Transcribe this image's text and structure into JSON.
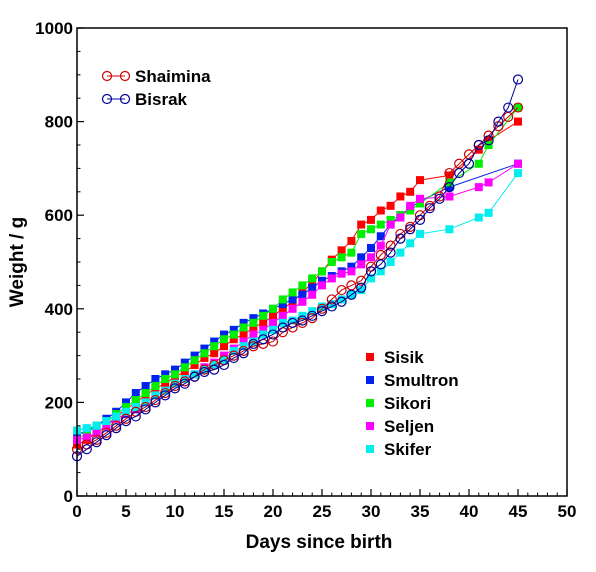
{
  "chart_data": {
    "type": "scatter",
    "xlabel": "Days since birth",
    "ylabel": "Weight / g",
    "xlim": [
      0,
      50
    ],
    "ylim": [
      0,
      1000
    ],
    "x_ticks": [
      0,
      5,
      10,
      15,
      20,
      25,
      30,
      35,
      40,
      45,
      50
    ],
    "y_ticks": [
      0,
      200,
      400,
      600,
      800,
      1000
    ],
    "grid": false,
    "legends": {
      "top-left": [
        "Shaimina",
        "Bisrak"
      ],
      "bottom-right": [
        "Sisik",
        "Smultron",
        "Sikori",
        "Seljen",
        "Skifer"
      ]
    },
    "series": [
      {
        "name": "Shaimina",
        "marker": "open-circle",
        "color": "#cc0000",
        "x": [
          0,
          1,
          2,
          3,
          4,
          5,
          6,
          7,
          8,
          9,
          10,
          11,
          12,
          13,
          14,
          15,
          16,
          17,
          18,
          19,
          20,
          21,
          22,
          23,
          24,
          25,
          26,
          27,
          28,
          29,
          30,
          31,
          32,
          33,
          34,
          35,
          36,
          37,
          38,
          39,
          40,
          41,
          42,
          43,
          44,
          45
        ],
        "y": [
          100,
          110,
          120,
          135,
          150,
          165,
          180,
          190,
          205,
          220,
          235,
          245,
          255,
          270,
          280,
          290,
          300,
          310,
          320,
          325,
          330,
          350,
          360,
          370,
          380,
          400,
          420,
          440,
          450,
          460,
          490,
          515,
          535,
          560,
          575,
          600,
          620,
          640,
          690,
          710,
          730,
          750,
          770,
          790,
          810,
          830
        ]
      },
      {
        "name": "Bisrak",
        "marker": "open-circle",
        "color": "#000099",
        "x": [
          0,
          1,
          2,
          3,
          4,
          5,
          6,
          7,
          8,
          9,
          10,
          11,
          12,
          13,
          14,
          15,
          16,
          17,
          18,
          19,
          20,
          21,
          22,
          23,
          24,
          25,
          26,
          27,
          28,
          29,
          30,
          31,
          32,
          33,
          34,
          35,
          36,
          37,
          38,
          39,
          40,
          41,
          42,
          43,
          44,
          45
        ],
        "y": [
          85,
          100,
          115,
          130,
          145,
          160,
          170,
          185,
          200,
          215,
          230,
          240,
          255,
          265,
          270,
          280,
          295,
          305,
          325,
          335,
          345,
          360,
          370,
          375,
          385,
          395,
          405,
          415,
          430,
          445,
          480,
          495,
          520,
          550,
          570,
          590,
          615,
          635,
          660,
          690,
          710,
          750,
          760,
          800,
          830,
          890
        ]
      },
      {
        "name": "Sisik",
        "marker": "filled-square",
        "color": "#ff0000",
        "x": [
          0,
          1,
          2,
          3,
          4,
          5,
          6,
          7,
          8,
          9,
          10,
          11,
          12,
          13,
          14,
          15,
          16,
          17,
          18,
          19,
          20,
          21,
          22,
          23,
          24,
          25,
          26,
          27,
          28,
          29,
          30,
          31,
          32,
          33,
          34,
          35,
          38,
          41,
          42,
          45
        ],
        "y": [
          110,
          120,
          135,
          150,
          170,
          185,
          200,
          215,
          230,
          240,
          255,
          265,
          280,
          295,
          305,
          320,
          335,
          345,
          360,
          370,
          385,
          400,
          415,
          435,
          455,
          480,
          505,
          525,
          545,
          580,
          590,
          610,
          620,
          640,
          650,
          675,
          685,
          740,
          760,
          800
        ]
      },
      {
        "name": "Smultron",
        "marker": "filled-square",
        "color": "#0022ee",
        "x": [
          0,
          1,
          2,
          3,
          4,
          5,
          6,
          7,
          8,
          9,
          10,
          11,
          12,
          13,
          14,
          15,
          16,
          17,
          18,
          19,
          20,
          21,
          22,
          23,
          24,
          25,
          26,
          27,
          28,
          29,
          30,
          31,
          32,
          33,
          34,
          35,
          38,
          45
        ],
        "y": [
          130,
          140,
          150,
          165,
          180,
          200,
          220,
          235,
          250,
          260,
          270,
          285,
          300,
          315,
          330,
          345,
          355,
          370,
          380,
          390,
          400,
          410,
          420,
          430,
          445,
          460,
          470,
          480,
          490,
          510,
          530,
          555,
          580,
          600,
          615,
          630,
          660,
          710
        ]
      },
      {
        "name": "Sikori",
        "marker": "filled-square",
        "color": "#00ee00",
        "x": [
          0,
          1,
          2,
          3,
          4,
          5,
          6,
          7,
          8,
          9,
          10,
          11,
          12,
          13,
          14,
          15,
          16,
          17,
          18,
          19,
          20,
          21,
          22,
          23,
          24,
          25,
          26,
          27,
          28,
          29,
          30,
          31,
          32,
          33,
          34,
          35,
          38,
          41,
          42,
          45
        ],
        "y": [
          120,
          135,
          150,
          160,
          175,
          190,
          205,
          220,
          235,
          250,
          260,
          275,
          290,
          305,
          320,
          335,
          345,
          360,
          370,
          385,
          400,
          420,
          435,
          450,
          465,
          480,
          500,
          510,
          520,
          560,
          570,
          580,
          590,
          600,
          610,
          625,
          670,
          710,
          750,
          830
        ]
      },
      {
        "name": "Seljen",
        "marker": "filled-square",
        "color": "#ff00ff",
        "x": [
          0,
          1,
          2,
          3,
          4,
          5,
          6,
          7,
          8,
          9,
          10,
          11,
          12,
          13,
          14,
          15,
          16,
          17,
          18,
          19,
          20,
          21,
          22,
          23,
          24,
          25,
          26,
          27,
          28,
          29,
          30,
          31,
          32,
          33,
          34,
          35,
          38,
          41,
          42,
          45
        ],
        "y": [
          120,
          125,
          135,
          150,
          165,
          175,
          185,
          200,
          215,
          225,
          240,
          250,
          260,
          275,
          285,
          300,
          315,
          330,
          345,
          355,
          370,
          385,
          400,
          415,
          430,
          450,
          465,
          475,
          480,
          495,
          510,
          535,
          580,
          595,
          620,
          635,
          640,
          660,
          670,
          710
        ]
      },
      {
        "name": "Skifer",
        "marker": "filled-square",
        "color": "#00eeee",
        "x": [
          0,
          1,
          2,
          3,
          4,
          5,
          6,
          7,
          8,
          9,
          10,
          11,
          12,
          13,
          14,
          15,
          16,
          17,
          18,
          19,
          20,
          21,
          22,
          23,
          24,
          25,
          26,
          27,
          28,
          29,
          30,
          31,
          32,
          33,
          34,
          35,
          38,
          41,
          42,
          45
        ],
        "y": [
          140,
          145,
          150,
          160,
          170,
          180,
          190,
          200,
          215,
          225,
          240,
          250,
          260,
          270,
          280,
          290,
          310,
          320,
          330,
          345,
          355,
          370,
          375,
          385,
          395,
          405,
          410,
          420,
          430,
          440,
          465,
          480,
          500,
          520,
          540,
          560,
          570,
          595,
          605,
          690
        ]
      }
    ]
  }
}
